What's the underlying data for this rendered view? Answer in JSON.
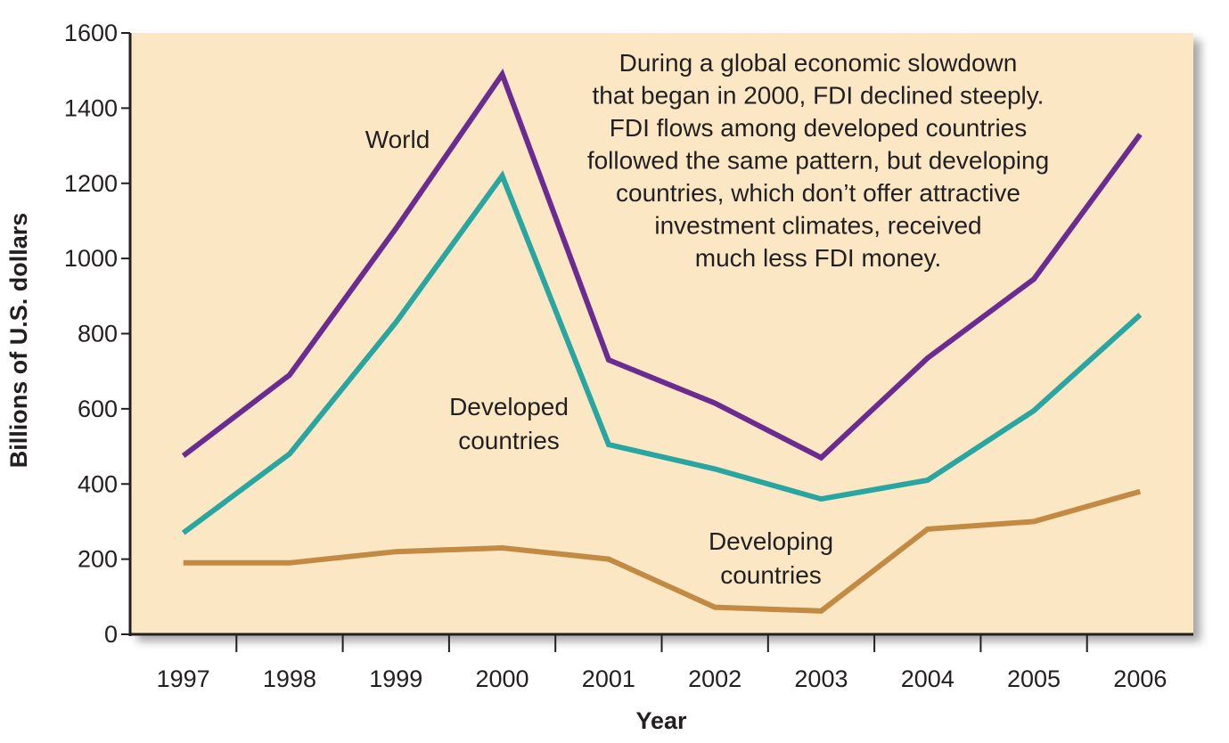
{
  "chart_data": {
    "type": "line",
    "title": "",
    "xlabel": "Year",
    "ylabel": "Billions of U.S. dollars",
    "x": [
      "1997",
      "1998",
      "1999",
      "2000",
      "2001",
      "2002",
      "2003",
      "2004",
      "2005",
      "2006"
    ],
    "ylim": [
      0,
      1600
    ],
    "yticks": [
      "0",
      "200",
      "400",
      "600",
      "800",
      "1000",
      "1200",
      "1400",
      "1600"
    ],
    "grid": false,
    "legend": "none",
    "background_color": "#fbe7c4",
    "series": [
      {
        "name": "World",
        "color": "#6a2c91",
        "values": [
          475,
          690,
          1080,
          1490,
          730,
          615,
          470,
          735,
          945,
          1330
        ]
      },
      {
        "name": "Developed countries",
        "color": "#2aa6a2",
        "values": [
          270,
          480,
          830,
          1220,
          505,
          440,
          360,
          410,
          595,
          850
        ]
      },
      {
        "name": "Developing countries",
        "color": "#c28a43",
        "values": [
          190,
          190,
          220,
          230,
          200,
          72,
          62,
          280,
          300,
          380
        ]
      }
    ],
    "series_labels": [
      {
        "lines": [
          "World"
        ]
      },
      {
        "lines": [
          "Developed",
          "countries"
        ]
      },
      {
        "lines": [
          "Developing",
          "countries"
        ]
      }
    ],
    "annotation": [
      "During a global economic slowdown",
      "that began in 2000, FDI declined steeply.",
      "FDI flows among developed countries",
      "followed the same pattern, but developing",
      "countries, which don’t offer attractive",
      "investment climates, received",
      "much less FDI money."
    ]
  }
}
